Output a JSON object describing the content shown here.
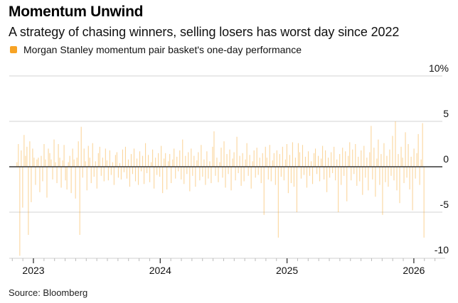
{
  "header": {
    "title": "Momentum Unwind",
    "subtitle": "A strategy of chasing winners, selling losers has worst day since 2022"
  },
  "legend": {
    "label": "Morgan Stanley momentum pair basket's one-day performance",
    "color": "#f7a325"
  },
  "footer": {
    "source": "Source: Bloomberg"
  },
  "chart_data": {
    "type": "bar",
    "title": "Momentum Unwind",
    "subtitle": "A strategy of chasing winners, selling losers has worst day since 2022",
    "xlabel": "",
    "ylabel": "",
    "series": [
      {
        "name": "Morgan Stanley momentum pair basket's one-day performance",
        "color": "#f7a325",
        "start_year": 2022.87,
        "end_year": 2026.08,
        "values": [
          0.5,
          2.5,
          -9.8,
          1.8,
          -4.5,
          3.5,
          1.2,
          2.2,
          -7.5,
          2.8,
          -3.9,
          2.0,
          1.0,
          -2.0,
          0.8,
          1.0,
          -2.8,
          1.2,
          -1.6,
          2.5,
          0.8,
          -3.4,
          2.0,
          1.5,
          0.8,
          -1.4,
          3.0,
          0.5,
          -1.8,
          2.5,
          1.0,
          -2.3,
          0.7,
          2.4,
          -1.5,
          -2.5,
          0.5,
          1.2,
          -2.9,
          2.0,
          0.8,
          -3.5,
          1.0,
          2.8,
          -7.5,
          4.4,
          -1.2,
          2.0,
          0.6,
          -2.6,
          2.3,
          1.0,
          -1.8,
          2.6,
          -1.1,
          0.6,
          -2.4,
          1.5,
          2.2,
          -1.0,
          1.0,
          -1.6,
          2.0,
          0.7,
          -1.5,
          1.8,
          -0.9,
          0.5,
          -2.0,
          1.3,
          1.6,
          -1.2,
          0.4,
          -1.4,
          1.9,
          -0.6,
          2.2,
          -1.3,
          0.8,
          -2.2,
          1.4,
          -0.8,
          2.0,
          -1.6,
          0.9,
          -2.0,
          1.7,
          -0.5,
          1.2,
          -1.9,
          2.6,
          -0.7,
          1.3,
          -1.7,
          0.5,
          1.9,
          -2.4,
          1.0,
          -0.9,
          1.5,
          -1.1,
          2.3,
          -2.9,
          0.9,
          1.5,
          -2.5,
          0.6,
          1.4,
          -1.8,
          0.8,
          2.0,
          -1.3,
          1.1,
          -0.5,
          1.8,
          -1.4,
          3.0,
          -1.9,
          1.2,
          -0.8,
          1.6,
          -2.7,
          2.0,
          -1.0,
          1.2,
          -2.2,
          0.7,
          1.6,
          -1.5,
          2.4,
          -1.1,
          0.8,
          -2.0,
          1.7,
          -1.3,
          0.6,
          -1.8,
          2.2,
          3.9,
          -1.0,
          1.0,
          -1.7,
          0.5,
          2.1,
          -1.2,
          2.8,
          -2.3,
          1.4,
          -0.8,
          1.9,
          -2.6,
          0.9,
          1.6,
          -1.5,
          3.3,
          -0.7,
          1.2,
          -2.1,
          1.5,
          -1.6,
          0.8,
          2.6,
          -1.0,
          1.3,
          -2.4,
          0.6,
          1.8,
          -1.2,
          2.1,
          -0.9,
          1.0,
          -1.8,
          1.5,
          -5.3,
          2.2,
          1.0,
          -1.4,
          2.4,
          -1.6,
          0.7,
          1.5,
          -2.0,
          1.8,
          -7.8,
          1.4,
          -1.1,
          2.2,
          -1.5,
          0.8,
          2.5,
          -2.9,
          1.3,
          -1.8,
          2.7,
          -2.2,
          1.0,
          -5.0,
          2.6,
          1.6,
          -1.3,
          2.4,
          -0.9,
          1.1,
          -2.3,
          1.7,
          -1.0,
          0.6,
          -1.9,
          1.5,
          2.0,
          -0.8,
          1.2,
          -1.6,
          0.9,
          2.3,
          -1.4,
          1.8,
          -2.8,
          1.0,
          -1.2,
          1.6,
          -0.7,
          2.2,
          -1.5,
          0.8,
          -5.0,
          1.4,
          -2.0,
          2.1,
          -1.0,
          1.7,
          -3.8,
          1.2,
          2.7,
          -1.5,
          1.9,
          -0.8,
          2.5,
          -2.1,
          1.1,
          -1.6,
          1.8,
          -3.1,
          2.3,
          -1.2,
          1.0,
          -2.6,
          1.6,
          4.5,
          -1.4,
          2.1,
          -3.3,
          0.9,
          3.0,
          -2.0,
          1.4,
          -5.3,
          2.6,
          -1.7,
          1.2,
          -2.2,
          1.9,
          -1.0,
          3.4,
          -1.5,
          5.0,
          -2.6,
          1.4,
          -4.0,
          2.2,
          1.0,
          -1.8,
          3.8,
          -1.2,
          2.5,
          -2.5,
          1.1,
          -4.8,
          2.0,
          -1.3,
          1.5,
          3.6,
          -2.0,
          0.8,
          4.8,
          -7.8
        ]
      }
    ],
    "x_ticks": [
      {
        "label": "2023",
        "year": 2023.0
      },
      {
        "label": "2024",
        "year": 2024.0
      },
      {
        "label": "2025",
        "year": 2025.0
      },
      {
        "label": "2026",
        "year": 2026.0
      }
    ],
    "y_ticks": [
      {
        "label": "10%",
        "value": 10
      },
      {
        "label": "5",
        "value": 5
      },
      {
        "label": "0",
        "value": 0
      },
      {
        "label": "-5",
        "value": -5
      },
      {
        "label": "-10",
        "value": -10
      }
    ],
    "xlim": [
      2022.83,
      2026.25
    ],
    "ylim": [
      -10,
      10
    ],
    "minor_ticks": "monthly",
    "grid": true,
    "legend_position": "top-left"
  }
}
